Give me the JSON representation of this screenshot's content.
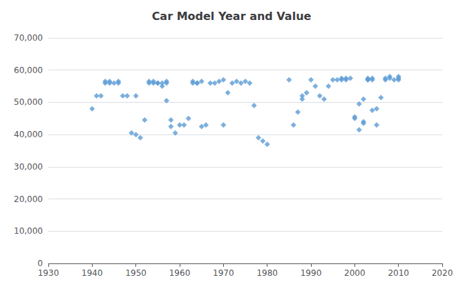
{
  "chart_data": {
    "type": "scatter",
    "title": "Car Model Year and Value",
    "x": [
      1940,
      1941,
      1942,
      1943,
      1943,
      1944,
      1944,
      1945,
      1946,
      1946,
      1947,
      1948,
      1949,
      1950,
      1950,
      1951,
      1952,
      1953,
      1953,
      1954,
      1954,
      1955,
      1955,
      1956,
      1956,
      1957,
      1957,
      1957,
      1958,
      1958,
      1959,
      1960,
      1961,
      1962,
      1963,
      1963,
      1964,
      1964,
      1965,
      1965,
      1966,
      1967,
      1968,
      1969,
      1970,
      1970,
      1971,
      1972,
      1973,
      1974,
      1975,
      1976,
      1977,
      1978,
      1979,
      1980,
      1985,
      1986,
      1987,
      1988,
      1988,
      1989,
      1990,
      1991,
      1992,
      1993,
      1994,
      1995,
      1996,
      1997,
      1997,
      1998,
      1998,
      1999,
      2000,
      2000,
      2001,
      2001,
      2002,
      2002,
      2002,
      2003,
      2003,
      2003,
      2004,
      2004,
      2004,
      2005,
      2005,
      2006,
      2007,
      2007,
      2008,
      2008,
      2009,
      2010,
      2010,
      2010
    ],
    "values": [
      48000,
      52000,
      52000,
      56000,
      56500,
      56000,
      56500,
      56000,
      56000,
      56500,
      52000,
      52000,
      40500,
      40000,
      52000,
      39000,
      44500,
      56000,
      56500,
      56000,
      56500,
      56000,
      56000,
      56000,
      55000,
      50500,
      56000,
      56500,
      42500,
      44500,
      40500,
      43000,
      43000,
      45000,
      56000,
      56500,
      56000,
      56000,
      56500,
      42500,
      43000,
      56000,
      56000,
      56500,
      57000,
      43000,
      53000,
      56000,
      56500,
      56000,
      56500,
      56000,
      49000,
      39000,
      38000,
      37000,
      57000,
      43000,
      47000,
      51000,
      52000,
      53000,
      57000,
      55000,
      52000,
      51000,
      55000,
      57000,
      57000,
      57500,
      57000,
      57500,
      57000,
      57500,
      45500,
      45000,
      41500,
      49500,
      44000,
      43500,
      51000,
      57000,
      57500,
      57000,
      57000,
      57500,
      47500,
      48000,
      43000,
      51500,
      57000,
      57500,
      58000,
      57500,
      57000,
      57500,
      57000,
      58000
    ],
    "color": "#5B9BD5",
    "marker": "diamond",
    "xlim": [
      1930,
      2020
    ],
    "xticks": [
      1930,
      1940,
      1950,
      1960,
      1970,
      1980,
      1990,
      2000,
      2010,
      2020
    ],
    "ylim": [
      0,
      70000
    ],
    "yticks": [
      0,
      {
        "value": 10000,
        "label": "10,000"
      },
      {
        "value": 20000,
        "label": "20,000"
      },
      {
        "value": 30000,
        "label": "30,000"
      },
      {
        "value": 40000,
        "label": "40,000"
      },
      {
        "value": 50000,
        "label": "50,000"
      },
      {
        "value": 60000,
        "label": "60,000"
      },
      {
        "value": 70000,
        "label": "70,000"
      }
    ],
    "grid": true
  }
}
